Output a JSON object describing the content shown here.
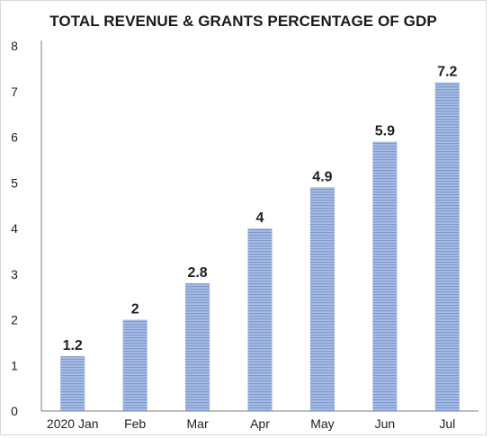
{
  "chart_data": {
    "type": "bar",
    "title": "TOTAL REVENUE & GRANTS PERCENTAGE OF GDP",
    "xlabel": "",
    "ylabel": "",
    "categories": [
      "2020 Jan",
      "Feb",
      "Mar",
      "Apr",
      "May",
      "Jun",
      "Jul"
    ],
    "values": [
      1.2,
      2,
      2.8,
      4,
      4.9,
      5.9,
      7.2
    ],
    "data_labels": [
      "1.2",
      "2",
      "2.8",
      "4",
      "4.9",
      "5.9",
      "7.2"
    ],
    "ylim": [
      0,
      8
    ],
    "yticks": [
      "0",
      "1",
      "2",
      "3",
      "4",
      "5",
      "6",
      "7",
      "8"
    ],
    "grid": false,
    "legend": "none",
    "colors": {
      "bar_fill": "#9fb4dd",
      "bar_stripe": "#8aa3d4",
      "axis": "#7f7f7f"
    }
  }
}
